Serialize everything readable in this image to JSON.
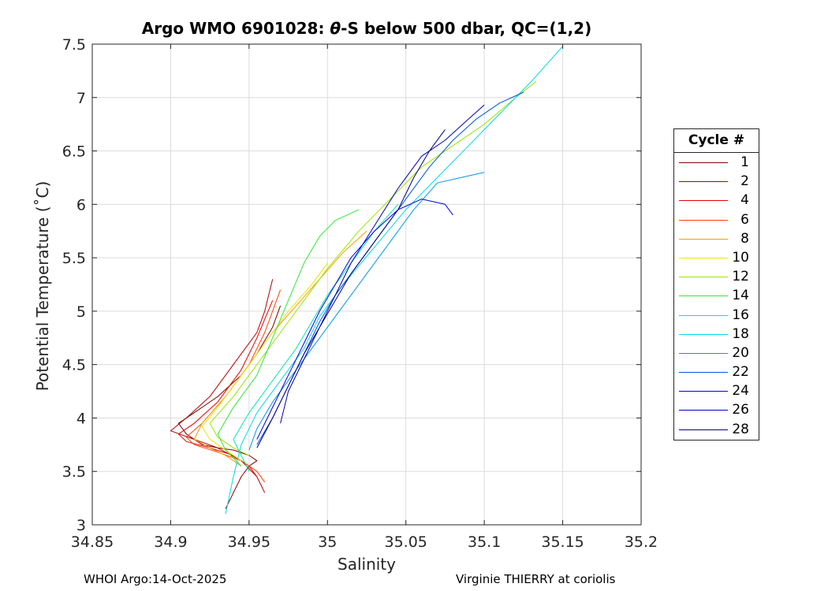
{
  "header": {
    "title_prefix": "Argo WMO 6901028: ",
    "title_theta": "θ",
    "title_suffix": "-S below 500 dbar,  QC=(1,2)"
  },
  "footer": {
    "left": "WHOI Argo:14-Oct-2025",
    "right": "Virginie THIERRY at coriolis"
  },
  "legend": {
    "title": "Cycle #"
  },
  "chart_data": {
    "type": "line",
    "title": "Argo WMO 6901028: θ-S below 500 dbar,  QC=(1,2)",
    "xlabel": "Salinity",
    "ylabel": "Potential Temperature (˚C)",
    "xlim": [
      34.85,
      35.2
    ],
    "ylim": [
      3,
      7.5
    ],
    "xticks": [
      "34.85",
      "34.9",
      "34.95",
      "35",
      "35.05",
      "35.1",
      "35.15",
      "35.2"
    ],
    "yticks": [
      "3",
      "3.5",
      "4",
      "4.5",
      "5",
      "5.5",
      "6",
      "6.5",
      "7",
      "7.5"
    ],
    "grid": true,
    "legend_position": "right",
    "series": [
      {
        "name": "1",
        "color": "#800000",
        "x": [
          34.935,
          34.94,
          34.945,
          34.95,
          34.955,
          34.95,
          34.94,
          34.93,
          34.92,
          34.91,
          34.905,
          34.915,
          34.93,
          34.945,
          34.955,
          34.965,
          34.97
        ],
        "y": [
          3.15,
          3.3,
          3.45,
          3.55,
          3.6,
          3.65,
          3.7,
          3.72,
          3.75,
          3.85,
          3.95,
          4.05,
          4.2,
          4.4,
          4.6,
          4.85,
          5.05
        ]
      },
      {
        "name": "2",
        "color": "#b30000",
        "x": [
          34.96,
          34.955,
          34.945,
          34.93,
          34.915,
          34.9,
          34.91,
          34.925,
          34.935,
          34.945,
          34.955,
          34.96,
          34.965
        ],
        "y": [
          3.3,
          3.45,
          3.6,
          3.72,
          3.8,
          3.88,
          4.0,
          4.2,
          4.4,
          4.6,
          4.8,
          5.0,
          5.3
        ]
      },
      {
        "name": "4",
        "color": "#e60000",
        "x": [
          34.955,
          34.95,
          34.94,
          34.925,
          34.91,
          34.905,
          34.915,
          34.93,
          34.945,
          34.955,
          34.965
        ],
        "y": [
          3.45,
          3.55,
          3.65,
          3.72,
          3.78,
          3.85,
          3.95,
          4.15,
          4.45,
          4.75,
          5.1
        ]
      },
      {
        "name": "6",
        "color": "#ff4000",
        "x": [
          34.96,
          34.955,
          34.945,
          34.93,
          34.915,
          34.91,
          34.92,
          34.935,
          34.95,
          34.96,
          34.97
        ],
        "y": [
          3.4,
          3.5,
          3.6,
          3.68,
          3.75,
          3.82,
          3.95,
          4.2,
          4.5,
          4.8,
          5.2
        ]
      },
      {
        "name": "8",
        "color": "#ff9900",
        "x": [
          34.945,
          34.935,
          34.925,
          34.915,
          34.92,
          34.935,
          34.95,
          34.965,
          34.98,
          34.995,
          35.01,
          35.025
        ],
        "y": [
          3.55,
          3.65,
          3.72,
          3.8,
          3.95,
          4.2,
          4.5,
          4.8,
          5.05,
          5.3,
          5.55,
          5.75
        ]
      },
      {
        "name": "10",
        "color": "#e6e600",
        "x": [
          34.945,
          34.935,
          34.925,
          34.92,
          34.93,
          34.945,
          34.96,
          34.975,
          34.99,
          35.0
        ],
        "y": [
          3.6,
          3.7,
          3.8,
          3.92,
          4.1,
          4.4,
          4.7,
          5.0,
          5.25,
          5.45
        ]
      },
      {
        "name": "12",
        "color": "#99e600",
        "x": [
          34.95,
          34.94,
          34.93,
          34.925,
          34.94,
          34.955,
          34.97,
          34.985,
          35.0,
          35.02,
          35.04,
          35.06,
          35.08,
          35.1,
          35.12,
          35.133
        ],
        "y": [
          3.65,
          3.72,
          3.82,
          3.95,
          4.2,
          4.5,
          4.8,
          5.1,
          5.4,
          5.75,
          6.05,
          6.35,
          6.55,
          6.75,
          7.0,
          7.15
        ]
      },
      {
        "name": "14",
        "color": "#33e633",
        "x": [
          34.945,
          34.935,
          34.93,
          34.94,
          34.955,
          34.965,
          34.975,
          34.985,
          34.995,
          35.005,
          35.02
        ],
        "y": [
          3.55,
          3.7,
          3.85,
          4.1,
          4.4,
          4.75,
          5.1,
          5.45,
          5.7,
          5.85,
          5.95
        ]
      },
      {
        "name": "16",
        "color": "#00e6b3",
        "x": [
          34.95,
          34.945,
          34.94,
          34.95,
          34.965,
          34.98,
          34.99,
          35.0,
          35.015,
          35.03,
          35.045
        ],
        "y": [
          3.5,
          3.65,
          3.8,
          4.05,
          4.35,
          4.65,
          4.9,
          5.15,
          5.45,
          5.75,
          6.0
        ]
      },
      {
        "name": "18",
        "color": "#00d9e6",
        "x": [
          34.935,
          34.94,
          34.945,
          34.955,
          34.97,
          34.985,
          34.995,
          35.01,
          35.03,
          35.05,
          35.07,
          35.09,
          35.11,
          35.13,
          35.15
        ],
        "y": [
          3.1,
          3.45,
          3.75,
          4.05,
          4.35,
          4.65,
          4.95,
          5.25,
          5.6,
          5.95,
          6.25,
          6.55,
          6.85,
          7.15,
          7.48
        ]
      },
      {
        "name": "20",
        "color": "#0099e6",
        "x": [
          34.95,
          34.955,
          34.965,
          34.98,
          34.995,
          35.01,
          35.025,
          35.04,
          35.055,
          35.07,
          35.085,
          35.1
        ],
        "y": [
          3.7,
          3.9,
          4.15,
          4.45,
          4.75,
          5.05,
          5.35,
          5.65,
          5.95,
          6.2,
          6.25,
          6.3
        ]
      },
      {
        "name": "22",
        "color": "#0055d9",
        "x": [
          34.955,
          34.965,
          34.975,
          34.985,
          34.995,
          35.005,
          35.02,
          35.035,
          35.05,
          35.065,
          35.08,
          35.095,
          35.11,
          35.125
        ],
        "y": [
          3.75,
          4.0,
          4.3,
          4.6,
          4.9,
          5.15,
          5.45,
          5.75,
          6.05,
          6.35,
          6.6,
          6.8,
          6.95,
          7.05
        ]
      },
      {
        "name": "24",
        "color": "#0000e6",
        "x": [
          34.955,
          34.965,
          34.975,
          34.985,
          34.995,
          35.005,
          35.015,
          35.03,
          35.045,
          35.06,
          35.075,
          35.08
        ],
        "y": [
          3.8,
          4.1,
          4.4,
          4.7,
          5.0,
          5.25,
          5.5,
          5.75,
          5.95,
          6.05,
          6.0,
          5.9
        ]
      },
      {
        "name": "26",
        "color": "#0000b3",
        "x": [
          34.97,
          34.975,
          34.985,
          34.995,
          35.005,
          35.015,
          35.03,
          35.045,
          35.06,
          35.075,
          35.09,
          35.1
        ],
        "y": [
          3.95,
          4.25,
          4.55,
          4.85,
          5.15,
          5.45,
          5.8,
          6.15,
          6.45,
          6.6,
          6.8,
          6.93
        ]
      },
      {
        "name": "28",
        "color": "#000080",
        "x": [
          34.955,
          34.965,
          34.975,
          34.985,
          34.995,
          35.005,
          35.015,
          35.03,
          35.045,
          35.055,
          35.065,
          35.075
        ],
        "y": [
          3.72,
          4.0,
          4.3,
          4.6,
          4.85,
          5.1,
          5.35,
          5.65,
          5.95,
          6.25,
          6.5,
          6.7
        ]
      }
    ]
  }
}
